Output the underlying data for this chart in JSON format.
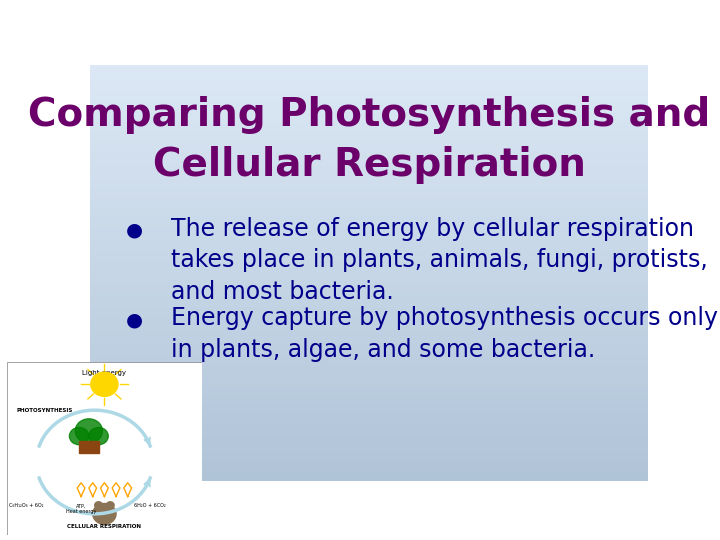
{
  "title_line1": "Comparing Photosynthesis and",
  "title_line2": "Cellular Respiration",
  "title_color": "#6B006B",
  "bullet_color": "#00008B",
  "bullet_points": [
    "The release of energy by cellular respiration\ntakes place in plants, animals, fungi, protists,\nand most bacteria.",
    "Energy capture by photosynthesis occurs only\nin plants, algae, and some bacteria."
  ],
  "bg_color_top": "#dce8f5",
  "bg_color_bottom": "#b0c4d8",
  "font_family": "Comic Sans MS",
  "title_fontsize": 28,
  "bullet_fontsize": 17,
  "image_placeholder": true
}
